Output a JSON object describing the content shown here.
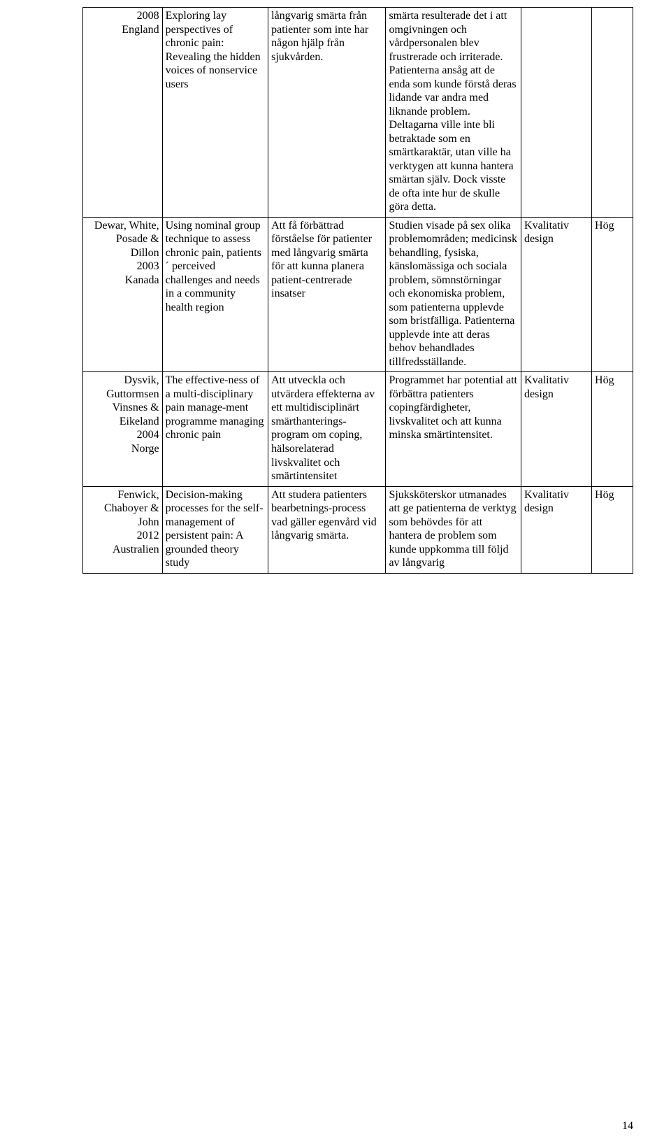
{
  "page_number": "14",
  "table": {
    "col_widths_pct": [
      13.5,
      18,
      20,
      23,
      12,
      7
    ],
    "border_color": "#000000",
    "background_color": "#ffffff",
    "font_family": "Times New Roman",
    "font_size_pt": 12,
    "rows": [
      {
        "c1": "2008\nEngland",
        "c2": "Exploring lay perspectives of chronic pain: Revealing the hidden voices of nonservice users",
        "c3": "långvarig smärta från patienter som inte har någon hjälp från sjukvården.",
        "c4": "smärta resulterade det i att omgivningen och vårdpersonalen blev frustrerade och irriterade. Patienterna ansåg att de enda som kunde förstå deras lidande var andra med liknande problem. Deltagarna ville inte bli betraktade som en smärtkaraktär, utan ville ha verktygen att kunna hantera smärtan själv. Dock visste de ofta inte hur de skulle göra detta.",
        "c5": "",
        "c6": ""
      },
      {
        "c1": "Dewar, White, Posade & Dillon\n2003\nKanada",
        "c2": "Using nominal group technique to assess chronic pain, patients´ perceived challenges and needs in a community health region",
        "c3": "Att få förbättrad förståelse för patienter med långvarig smärta för att kunna planera patient-centrerade insatser",
        "c4": "Studien visade på sex olika problemområden; medicinsk behandling, fysiska, känslomässiga och sociala problem, sömnstörningar och ekonomiska problem, som patienterna upplevde som bristfälliga. Patienterna upplevde inte att deras behov behandlades tillfredsställande.",
        "c5": "Kvalitativ design",
        "c6": "Hög"
      },
      {
        "c1": "Dysvik, Guttormsen Vinsnes & Eikeland\n2004\nNorge",
        "c2": "The effective-ness of a multi-disciplinary pain manage-ment programme managing chronic pain",
        "c3": "Att utveckla och utvärdera effekterna av ett multidisciplinärt smärthanterings-program om coping, hälsorelaterad livskvalitet och smärtintensitet",
        "c4": "Programmet har potential att förbättra patienters copingfärdigheter, livskvalitet och att kunna minska smärtintensitet.",
        "c5": "Kvalitativ design",
        "c6": "Hög"
      },
      {
        "c1": "Fenwick, Chaboyer & John\n2012\nAustralien",
        "c2": "Decision-making processes for the self-management of persistent pain: A grounded theory study",
        "c3": "Att studera patienters bearbetnings-process vad gäller egenvård vid långvarig smärta.",
        "c4": "Sjuksköterskor utmanades att ge patienterna de verktyg som behövdes för att hantera de problem som kunde uppkomma till följd av långvarig",
        "c5": "Kvalitativ design",
        "c6": "Hög"
      }
    ]
  }
}
